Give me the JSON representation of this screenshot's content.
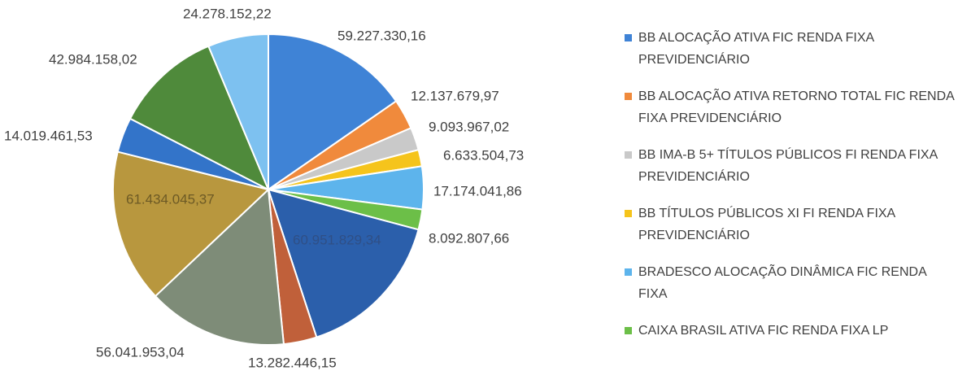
{
  "chart_data": {
    "type": "pie",
    "categories": [
      "BB ALOCAÇÃO ATIVA FIC RENDA FIXA PREVIDENCIÁRIO",
      "BB ALOCAÇÃO ATIVA RETORNO TOTAL FIC RENDA FIXA PREVIDENCIÁRIO",
      "BB IMA-B 5+ TÍTULOS PÚBLICOS FI RENDA FIXA PREVIDENCIÁRIO",
      "BB TÍTULOS PÚBLICOS XI FI RENDA FIXA PREVIDENCIÁRIO",
      "BRADESCO ALOCAÇÃO DINÂMICA FIC RENDA FIXA",
      "CAIXA BRASIL ATIVA FIC RENDA FIXA LP",
      null,
      null,
      null,
      null,
      null,
      null,
      null
    ],
    "values": [
      59227330.16,
      12137679.97,
      9093967.02,
      6633504.73,
      17174041.86,
      8092807.66,
      60951829.34,
      13282446.15,
      56041953.04,
      61434045.37,
      14019461.53,
      42984158.02,
      24278152.22
    ],
    "value_labels": [
      "59.227.330,16",
      "12.137.679,97",
      "9.093.967,02",
      "6.633.504,73",
      "17.174.041,86",
      "8.092.807,66",
      "60.951.829,34",
      "13.282.446,15",
      "56.041.953,04",
      "61.434.045,37",
      "14.019.461,53",
      "42.984.158,02",
      "24.278.152,22"
    ],
    "colors": [
      "#3f83d6",
      "#f08a3c",
      "#c9c9c9",
      "#f5c41c",
      "#5db4ec",
      "#6cbf48",
      "#2b5fab",
      "#c0603a",
      "#7e8c78",
      "#b8973e",
      "#3374c9",
      "#4f8a3b",
      "#7dc1f0"
    ],
    "legend": "right"
  }
}
